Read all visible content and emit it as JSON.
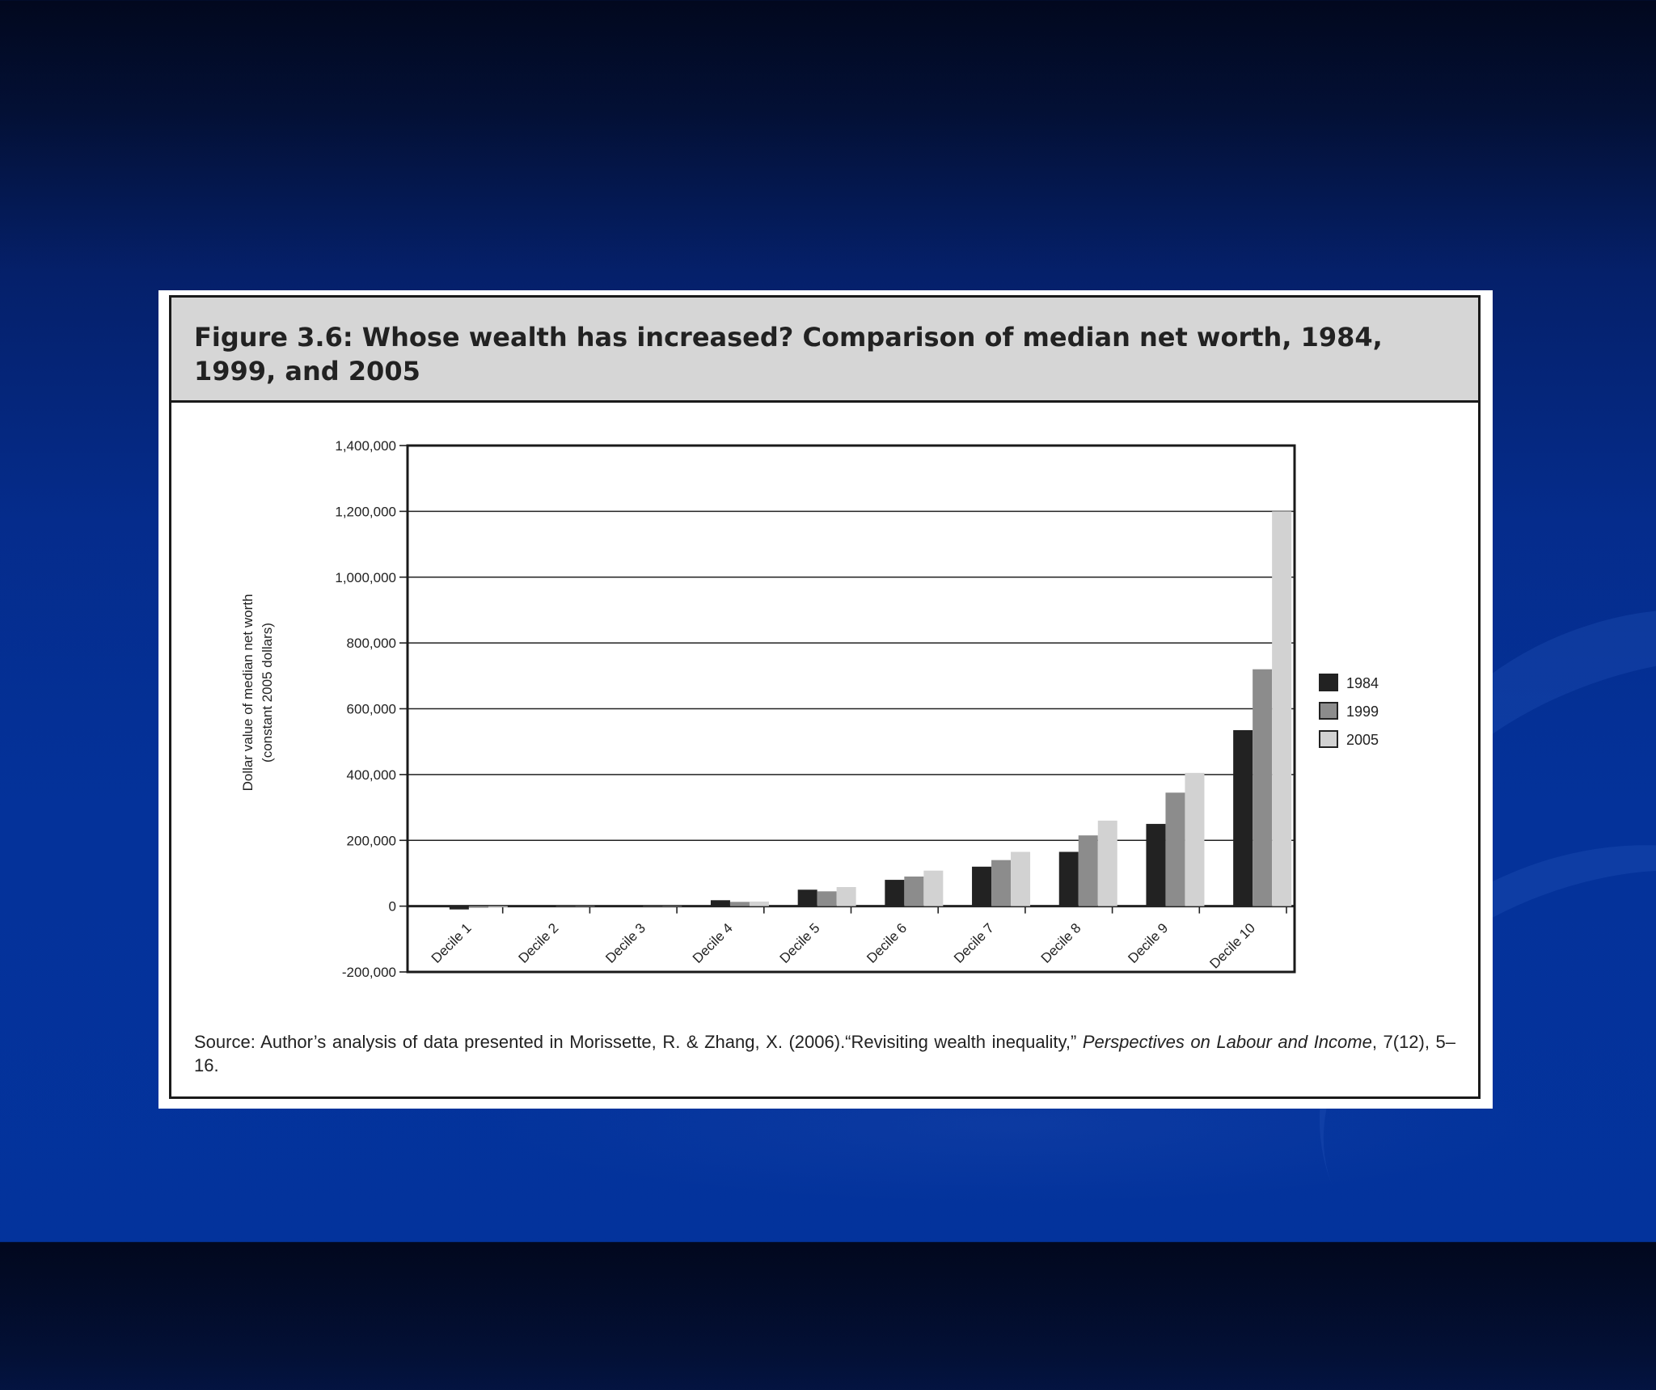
{
  "figure": {
    "title": "Figure 3.6: Whose wealth has increased? Comparison of median net worth, 1984, 1999, and 2005",
    "source": {
      "prefix": "Source: Author’s analysis of data presented in Morissette, R. & Zhang, X. (2006).“Revisiting wealth inequality,” ",
      "journal": "Perspectives on Labour and Income",
      "suffix": ", 7(12), 5–16."
    }
  },
  "chart_data": {
    "type": "bar",
    "categories": [
      "Decile 1",
      "Decile 2",
      "Decile 3",
      "Decile 4",
      "Decile 5",
      "Decile 6",
      "Decile 7",
      "Decile 8",
      "Decile 9",
      "Decile 10"
    ],
    "series": [
      {
        "name": "1984",
        "color": "#222222",
        "values": [
          -10000,
          0,
          0,
          18000,
          50000,
          80000,
          120000,
          165000,
          250000,
          535000
        ]
      },
      {
        "name": "1999",
        "color": "#8c8c8c",
        "values": [
          -5000,
          0,
          0,
          13000,
          45000,
          90000,
          140000,
          215000,
          345000,
          720000
        ]
      },
      {
        "name": "2005",
        "color": "#d2d2d2",
        "values": [
          -3000,
          0,
          0,
          14000,
          58000,
          108000,
          165000,
          260000,
          405000,
          1200000
        ]
      }
    ],
    "ylabel_lines": [
      "Dollar value of median net worth",
      "(constant 2005 dollars)"
    ],
    "xlabel": "",
    "ylim": [
      -200000,
      1400000
    ],
    "yticks": [
      {
        "value": 1400000,
        "label": "1,400,000"
      },
      {
        "value": 1200000,
        "label": "1,200,000"
      },
      {
        "value": 1000000,
        "label": "1,000,000"
      },
      {
        "value": 800000,
        "label": "800,000"
      },
      {
        "value": 600000,
        "label": "600,000"
      },
      {
        "value": 400000,
        "label": "400,000"
      },
      {
        "value": 200000,
        "label": "200,000"
      },
      {
        "value": 0,
        "label": "0"
      },
      {
        "value": -200000,
        "label": "-200,000"
      }
    ],
    "grid": true,
    "legend_position": "right"
  }
}
